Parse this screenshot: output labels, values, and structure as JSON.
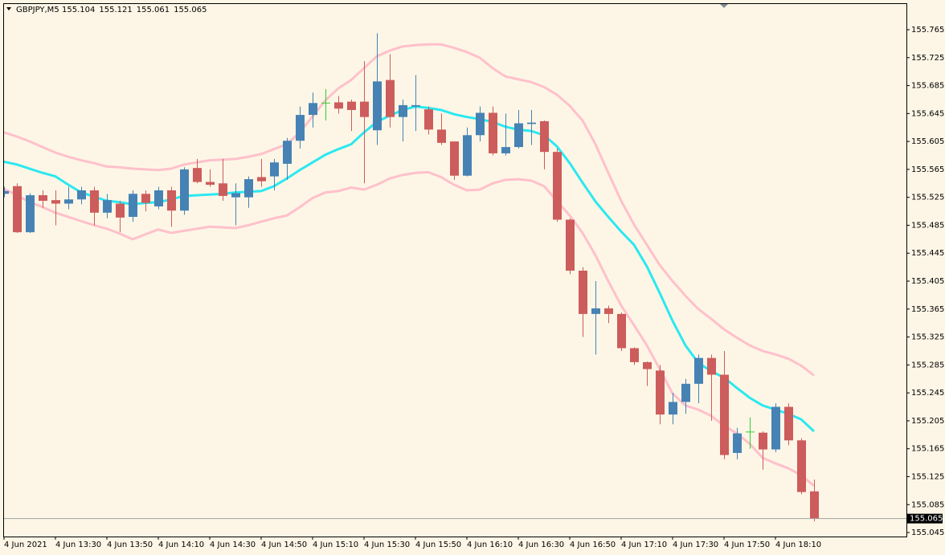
{
  "chart_data": {
    "type": "candlestick",
    "symbol": "GBPJPY,M5",
    "categories": [
      "4 Jun 2021",
      null,
      null,
      null,
      "4 Jun 13:30",
      null,
      null,
      null,
      "4 Jun 13:50",
      null,
      null,
      null,
      "4 Jun 14:10",
      null,
      null,
      null,
      "4 Jun 14:30",
      null,
      null,
      null,
      "4 Jun 14:50",
      null,
      null,
      null,
      "4 Jun 15:10",
      null,
      null,
      null,
      "4 Jun 15:30",
      null,
      null,
      null,
      "4 Jun 15:50",
      null,
      null,
      null,
      "4 Jun 16:10",
      null,
      null,
      null,
      "4 Jun 16:30",
      null,
      null,
      null,
      "4 Jun 16:50",
      null,
      null,
      null,
      "4 Jun 17:10",
      null,
      null,
      null,
      "4 Jun 17:30",
      null,
      null,
      null,
      "4 Jun 17:50",
      null,
      null,
      null,
      "4 Jun 18:10",
      null,
      null,
      null
    ],
    "open": [
      155.53,
      155.541,
      155.475,
      155.528,
      155.521,
      155.516,
      155.522,
      155.535,
      155.503,
      155.516,
      155.497,
      155.53,
      155.512,
      155.535,
      155.506,
      155.567,
      155.547,
      155.545,
      155.525,
      155.525,
      155.554,
      155.555,
      155.573,
      155.606,
      155.643,
      155.66,
      155.661,
      155.662,
      155.662,
      155.621,
      155.693,
      155.64,
      155.655,
      155.651,
      155.622,
      155.605,
      155.556,
      155.614,
      155.646,
      155.588,
      155.597,
      155.63,
      155.634,
      155.59,
      155.493,
      155.42,
      155.358,
      155.366,
      155.358,
      155.309,
      155.289,
      155.277,
      155.214,
      155.232,
      155.258,
      155.295,
      155.271,
      155.159,
      155.189,
      155.188,
      155.164,
      155.225,
      155.177,
      155.104
    ],
    "high": [
      155.54,
      155.545,
      155.531,
      155.535,
      155.535,
      155.54,
      155.54,
      155.54,
      155.53,
      155.52,
      155.535,
      155.535,
      155.54,
      155.54,
      155.568,
      155.58,
      155.565,
      155.58,
      155.545,
      155.555,
      155.58,
      155.58,
      155.61,
      155.655,
      155.675,
      155.68,
      155.67,
      155.665,
      155.72,
      155.76,
      155.73,
      155.665,
      155.7,
      155.655,
      155.645,
      155.605,
      155.625,
      155.655,
      155.655,
      155.645,
      155.65,
      155.65,
      155.635,
      155.595,
      155.495,
      155.425,
      155.405,
      155.37,
      155.36,
      155.31,
      155.29,
      155.285,
      155.245,
      155.265,
      155.3,
      155.3,
      155.305,
      155.195,
      155.21,
      155.19,
      155.23,
      155.23,
      155.18,
      155.121
    ],
    "low": [
      155.525,
      155.474,
      155.474,
      155.51,
      155.485,
      155.508,
      155.515,
      155.485,
      155.495,
      155.475,
      155.49,
      155.505,
      155.508,
      155.483,
      155.5,
      155.545,
      155.54,
      155.52,
      155.485,
      155.51,
      155.54,
      155.535,
      155.55,
      155.595,
      155.625,
      155.635,
      155.645,
      155.62,
      155.545,
      155.6,
      155.625,
      155.605,
      155.62,
      155.615,
      155.6,
      155.55,
      155.555,
      155.605,
      155.585,
      155.585,
      155.595,
      155.6,
      155.565,
      155.49,
      155.415,
      155.325,
      155.3,
      155.345,
      155.305,
      155.285,
      155.255,
      155.2,
      155.2,
      155.215,
      155.23,
      155.205,
      155.15,
      155.15,
      155.165,
      155.135,
      155.16,
      155.17,
      155.1,
      155.061
    ],
    "close": [
      155.534,
      155.475,
      155.528,
      155.52,
      155.516,
      155.522,
      155.535,
      155.503,
      155.521,
      155.496,
      155.53,
      155.517,
      155.535,
      155.506,
      155.565,
      155.547,
      155.543,
      155.527,
      155.531,
      155.551,
      155.548,
      155.575,
      155.606,
      155.643,
      155.66,
      155.66,
      155.652,
      155.65,
      155.64,
      155.691,
      155.64,
      155.657,
      155.657,
      155.622,
      155.603,
      155.556,
      155.614,
      155.646,
      155.588,
      155.597,
      155.631,
      155.632,
      155.59,
      155.493,
      155.42,
      155.358,
      155.366,
      155.358,
      155.309,
      155.289,
      155.279,
      155.214,
      155.232,
      155.258,
      155.295,
      155.271,
      155.156,
      155.187,
      155.189,
      155.164,
      155.225,
      155.177,
      155.103,
      155.065
    ],
    "colors": {
      "up": "#4682b4",
      "down": "#cd5c5c",
      "doji": "#32cd32"
    },
    "lines": [
      {
        "color": "#ffc0cb",
        "values": [
          155.618,
          155.612,
          155.605,
          155.597,
          155.589,
          155.583,
          155.578,
          155.574,
          155.569,
          155.568,
          155.566,
          155.565,
          155.564,
          155.566,
          155.572,
          155.575,
          155.578,
          155.579,
          155.58,
          155.583,
          155.587,
          155.594,
          155.601,
          155.618,
          155.641,
          155.664,
          155.681,
          155.693,
          155.71,
          155.727,
          155.735,
          155.741,
          155.743,
          155.744,
          155.744,
          155.739,
          155.733,
          155.725,
          155.71,
          155.698,
          155.694,
          155.69,
          155.683,
          155.672,
          155.656,
          155.635,
          155.601,
          155.56,
          155.52,
          155.486,
          155.457,
          155.428,
          155.405,
          155.384,
          155.365,
          155.351,
          155.336,
          155.324,
          155.313,
          155.305,
          155.3,
          155.294,
          155.284,
          155.27
        ]
      },
      {
        "color": "#2be8f0",
        "values": [
          155.576,
          155.572,
          155.566,
          155.56,
          155.555,
          155.543,
          155.532,
          155.526,
          155.52,
          155.518,
          155.515,
          155.517,
          155.518,
          155.522,
          155.527,
          155.528,
          155.529,
          155.53,
          155.532,
          155.533,
          155.534,
          155.541,
          155.552,
          155.564,
          155.575,
          155.586,
          155.594,
          155.601,
          155.618,
          155.633,
          155.642,
          155.65,
          155.655,
          155.653,
          155.65,
          155.644,
          155.64,
          155.637,
          155.633,
          155.626,
          155.622,
          155.62,
          155.614,
          155.598,
          155.574,
          155.546,
          155.519,
          155.497,
          155.476,
          155.457,
          155.426,
          155.388,
          155.348,
          155.313,
          155.288,
          155.276,
          155.267,
          155.252,
          155.238,
          155.227,
          155.221,
          155.215,
          155.207,
          155.19
        ]
      },
      {
        "color": "#ffc0cb",
        "values": [
          155.537,
          155.528,
          155.518,
          155.511,
          155.503,
          155.497,
          155.491,
          155.485,
          155.48,
          155.473,
          155.465,
          155.472,
          155.479,
          155.474,
          155.477,
          155.48,
          155.483,
          155.482,
          155.481,
          155.485,
          155.49,
          155.495,
          155.499,
          155.511,
          155.524,
          155.532,
          155.534,
          155.539,
          155.536,
          155.543,
          155.552,
          155.557,
          155.56,
          155.561,
          155.554,
          155.543,
          155.535,
          155.536,
          155.545,
          155.55,
          155.551,
          155.549,
          155.541,
          155.52,
          155.499,
          155.474,
          155.442,
          155.405,
          155.37,
          155.342,
          155.313,
          155.279,
          155.244,
          155.227,
          155.221,
          155.212,
          155.198,
          155.187,
          155.172,
          155.152,
          155.144,
          155.137,
          155.127,
          155.112
        ]
      }
    ],
    "ylim": [
      155.0393,
      155.8018
    ],
    "yticks": [
      155.765,
      155.725,
      155.685,
      155.645,
      155.605,
      155.565,
      155.525,
      155.485,
      155.445,
      155.405,
      155.365,
      155.325,
      155.285,
      155.245,
      155.205,
      155.165,
      155.125,
      155.085,
      155.045
    ],
    "grid": false
  }
}
